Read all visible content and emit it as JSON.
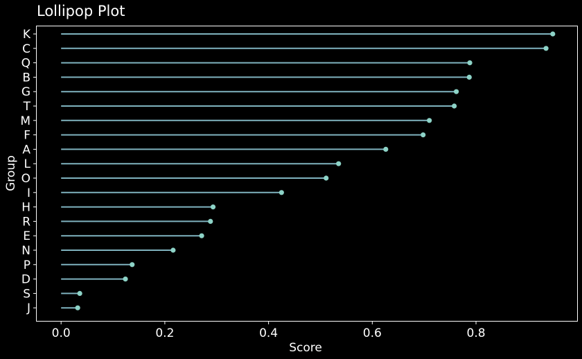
{
  "chart_data": {
    "type": "lollipop",
    "title": "Lollipop Plot",
    "xlabel": "Score",
    "ylabel": "Group",
    "xlim": [
      -0.047,
      0.995
    ],
    "xticks": [
      {
        "value": 0.0,
        "label": "0.0"
      },
      {
        "value": 0.2,
        "label": "0.2"
      },
      {
        "value": 0.4,
        "label": "0.4"
      },
      {
        "value": 0.6,
        "label": "0.6"
      },
      {
        "value": 0.8,
        "label": "0.8"
      }
    ],
    "grid": false,
    "colors": {
      "background": "#000000",
      "stem": "#7fb3bf",
      "marker": "#8dd3c7",
      "text": "#ffffff"
    },
    "categories": [
      "K",
      "C",
      "Q",
      "B",
      "G",
      "T",
      "M",
      "F",
      "A",
      "L",
      "O",
      "I",
      "H",
      "R",
      "E",
      "N",
      "P",
      "D",
      "S",
      "J"
    ],
    "values": [
      0.948,
      0.935,
      0.788,
      0.787,
      0.762,
      0.758,
      0.71,
      0.698,
      0.626,
      0.535,
      0.511,
      0.425,
      0.293,
      0.288,
      0.271,
      0.216,
      0.137,
      0.124,
      0.036,
      0.032
    ]
  }
}
